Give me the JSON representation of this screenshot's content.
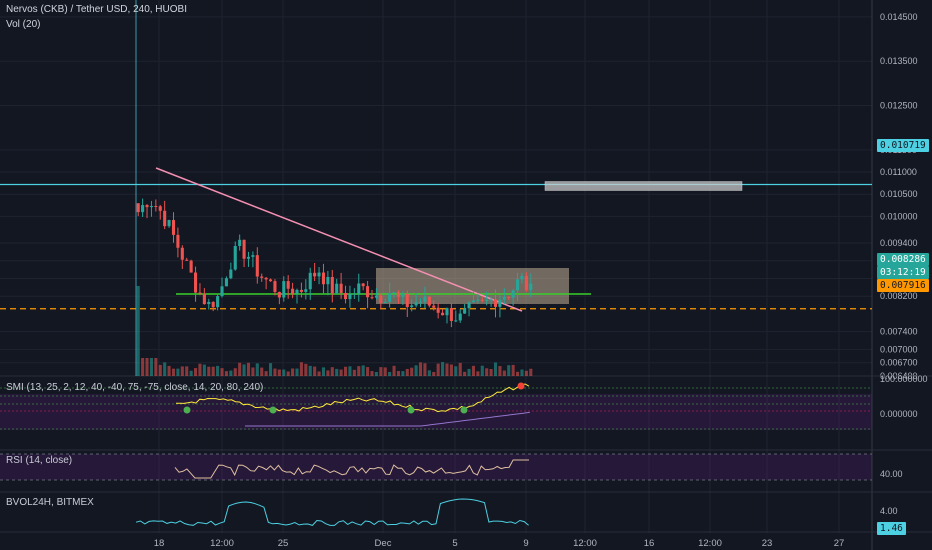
{
  "header": {
    "symbol_line": "Nervos (CKB) / Tether USD, 240, HUOBI",
    "volume_label": "Vol (20)"
  },
  "price_axis": {
    "ticks": [
      "0.014500",
      "0.013500",
      "0.012500",
      "0.011500",
      "0.011000",
      "0.010500",
      "0.010000",
      "0.009400",
      "0.009000",
      "0.008600",
      "0.008200",
      "0.007400",
      "0.007000",
      "0.006700",
      "0.006400"
    ]
  },
  "tags": {
    "resistance": "0.010719",
    "last_price": "0.008286",
    "countdown": "03:12:19",
    "support": "0.007916"
  },
  "smi": {
    "title": "SMI (13, 25, 2, 12, 40, -40, 75, -75, close, 14, 20, 80, 240)",
    "ticks": [
      "100.000000",
      "0.000000"
    ]
  },
  "rsi": {
    "title": "RSI (14, close)",
    "ticks": [
      "40.00"
    ]
  },
  "bvol": {
    "title": "BVOL24H, BITMEX",
    "ticks": [
      "4.00",
      "1.46"
    ]
  },
  "time_axis": {
    "ticks": [
      "18",
      "12:00",
      "25",
      "Dec",
      "5",
      "9",
      "12:00",
      "16",
      "12:00",
      "23",
      "27"
    ]
  },
  "colors": {
    "background": "#131722",
    "up": "#26a69a",
    "down": "#ef5350",
    "resistance": "#4dd0e1",
    "support": "#ff9800",
    "trendline": "#f48fb1",
    "support_line": "#39d02a"
  },
  "chart_data": {
    "type": "candlestick",
    "title": "Nervos (CKB) / Tether USD, 240, HUOBI",
    "ylim": [
      0.0064,
      0.0147
    ],
    "x_labels": [
      "18",
      "12:00",
      "25",
      "Dec",
      "5",
      "9",
      "12:00",
      "16",
      "12:00",
      "23",
      "27"
    ],
    "horizontal_levels": [
      {
        "name": "resistance",
        "value": 0.010719
      },
      {
        "name": "support",
        "value": 0.007916
      }
    ],
    "close_series_approx": [
      0.0101,
      0.0104,
      0.0102,
      0.0098,
      0.0093,
      0.0088,
      0.0083,
      0.008,
      0.0082,
      0.0089,
      0.0093,
      0.0091,
      0.0087,
      0.0085,
      0.0083,
      0.0084,
      0.0083,
      0.0086,
      0.0088,
      0.0084,
      0.0083,
      0.0082,
      0.0084,
      0.0083,
      0.0082,
      0.0083,
      0.0081,
      0.008,
      0.0081,
      0.008,
      0.0079,
      0.0078,
      0.0077,
      0.0079,
      0.008,
      0.0081,
      0.0082,
      0.0083,
      0.0086,
      0.0083
    ],
    "last_price": 0.008286,
    "grid": true
  }
}
